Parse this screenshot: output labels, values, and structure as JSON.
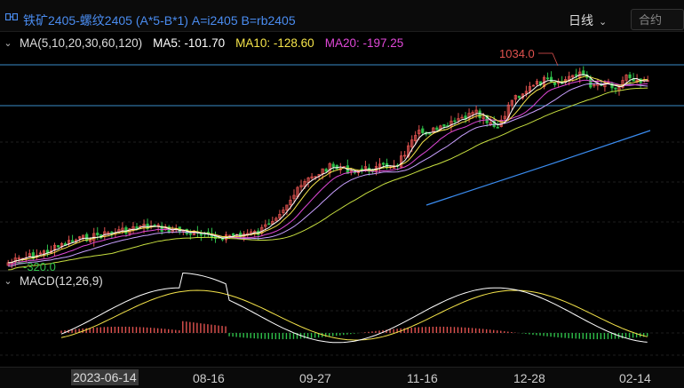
{
  "header": {
    "title": "铁矿2405-螺纹2405 (A*5-B*1) A=i2405 B=rb2405",
    "period_label": "日线",
    "contract_placeholder": "合约"
  },
  "ma_legend": {
    "toggle": "⌄",
    "params": "MA(5,10,20,30,60,120)",
    "ma5": "MA5: -101.70",
    "ma10": "MA10: -128.60",
    "ma20": "MA20: -197.25"
  },
  "macd_legend": {
    "toggle": "⌄",
    "params": "MACD(12,26,9)"
  },
  "annotations": {
    "high_label": "1034.0",
    "low_label": "-320.0"
  },
  "xaxis": {
    "labels": [
      "2023-06-14",
      "08-16",
      "09-27",
      "11-16",
      "12-28",
      "02-14"
    ]
  },
  "colors": {
    "up": "#e0524f",
    "down": "#2fbf4a",
    "ma5": "#ffffff",
    "ma10": "#f5e44a",
    "ma20": "#e048d8",
    "ma30": "#c9a0ff",
    "ma60": "#c8e040",
    "ma120": "#3a8cf0",
    "dif": "#ffffff",
    "dea": "#f5e44a",
    "level_line": "#3a8cc8",
    "title": "#4a8cf0",
    "high_label": "#e0524f",
    "low_label": "#2fbf4a"
  },
  "chart_data": {
    "type": "candlestick",
    "series": [
      {
        "name": "MA5",
        "value": -101.7
      },
      {
        "name": "MA10",
        "value": -128.6
      },
      {
        "name": "MA20",
        "value": -197.25
      }
    ],
    "price_high": 1034.0,
    "price_low": -320.0,
    "x_ticks": [
      "2023-06-14",
      "08-16",
      "09-27",
      "11-16",
      "12-28",
      "02-14"
    ],
    "indicator": "MACD(12,26,9)",
    "grid": true
  }
}
